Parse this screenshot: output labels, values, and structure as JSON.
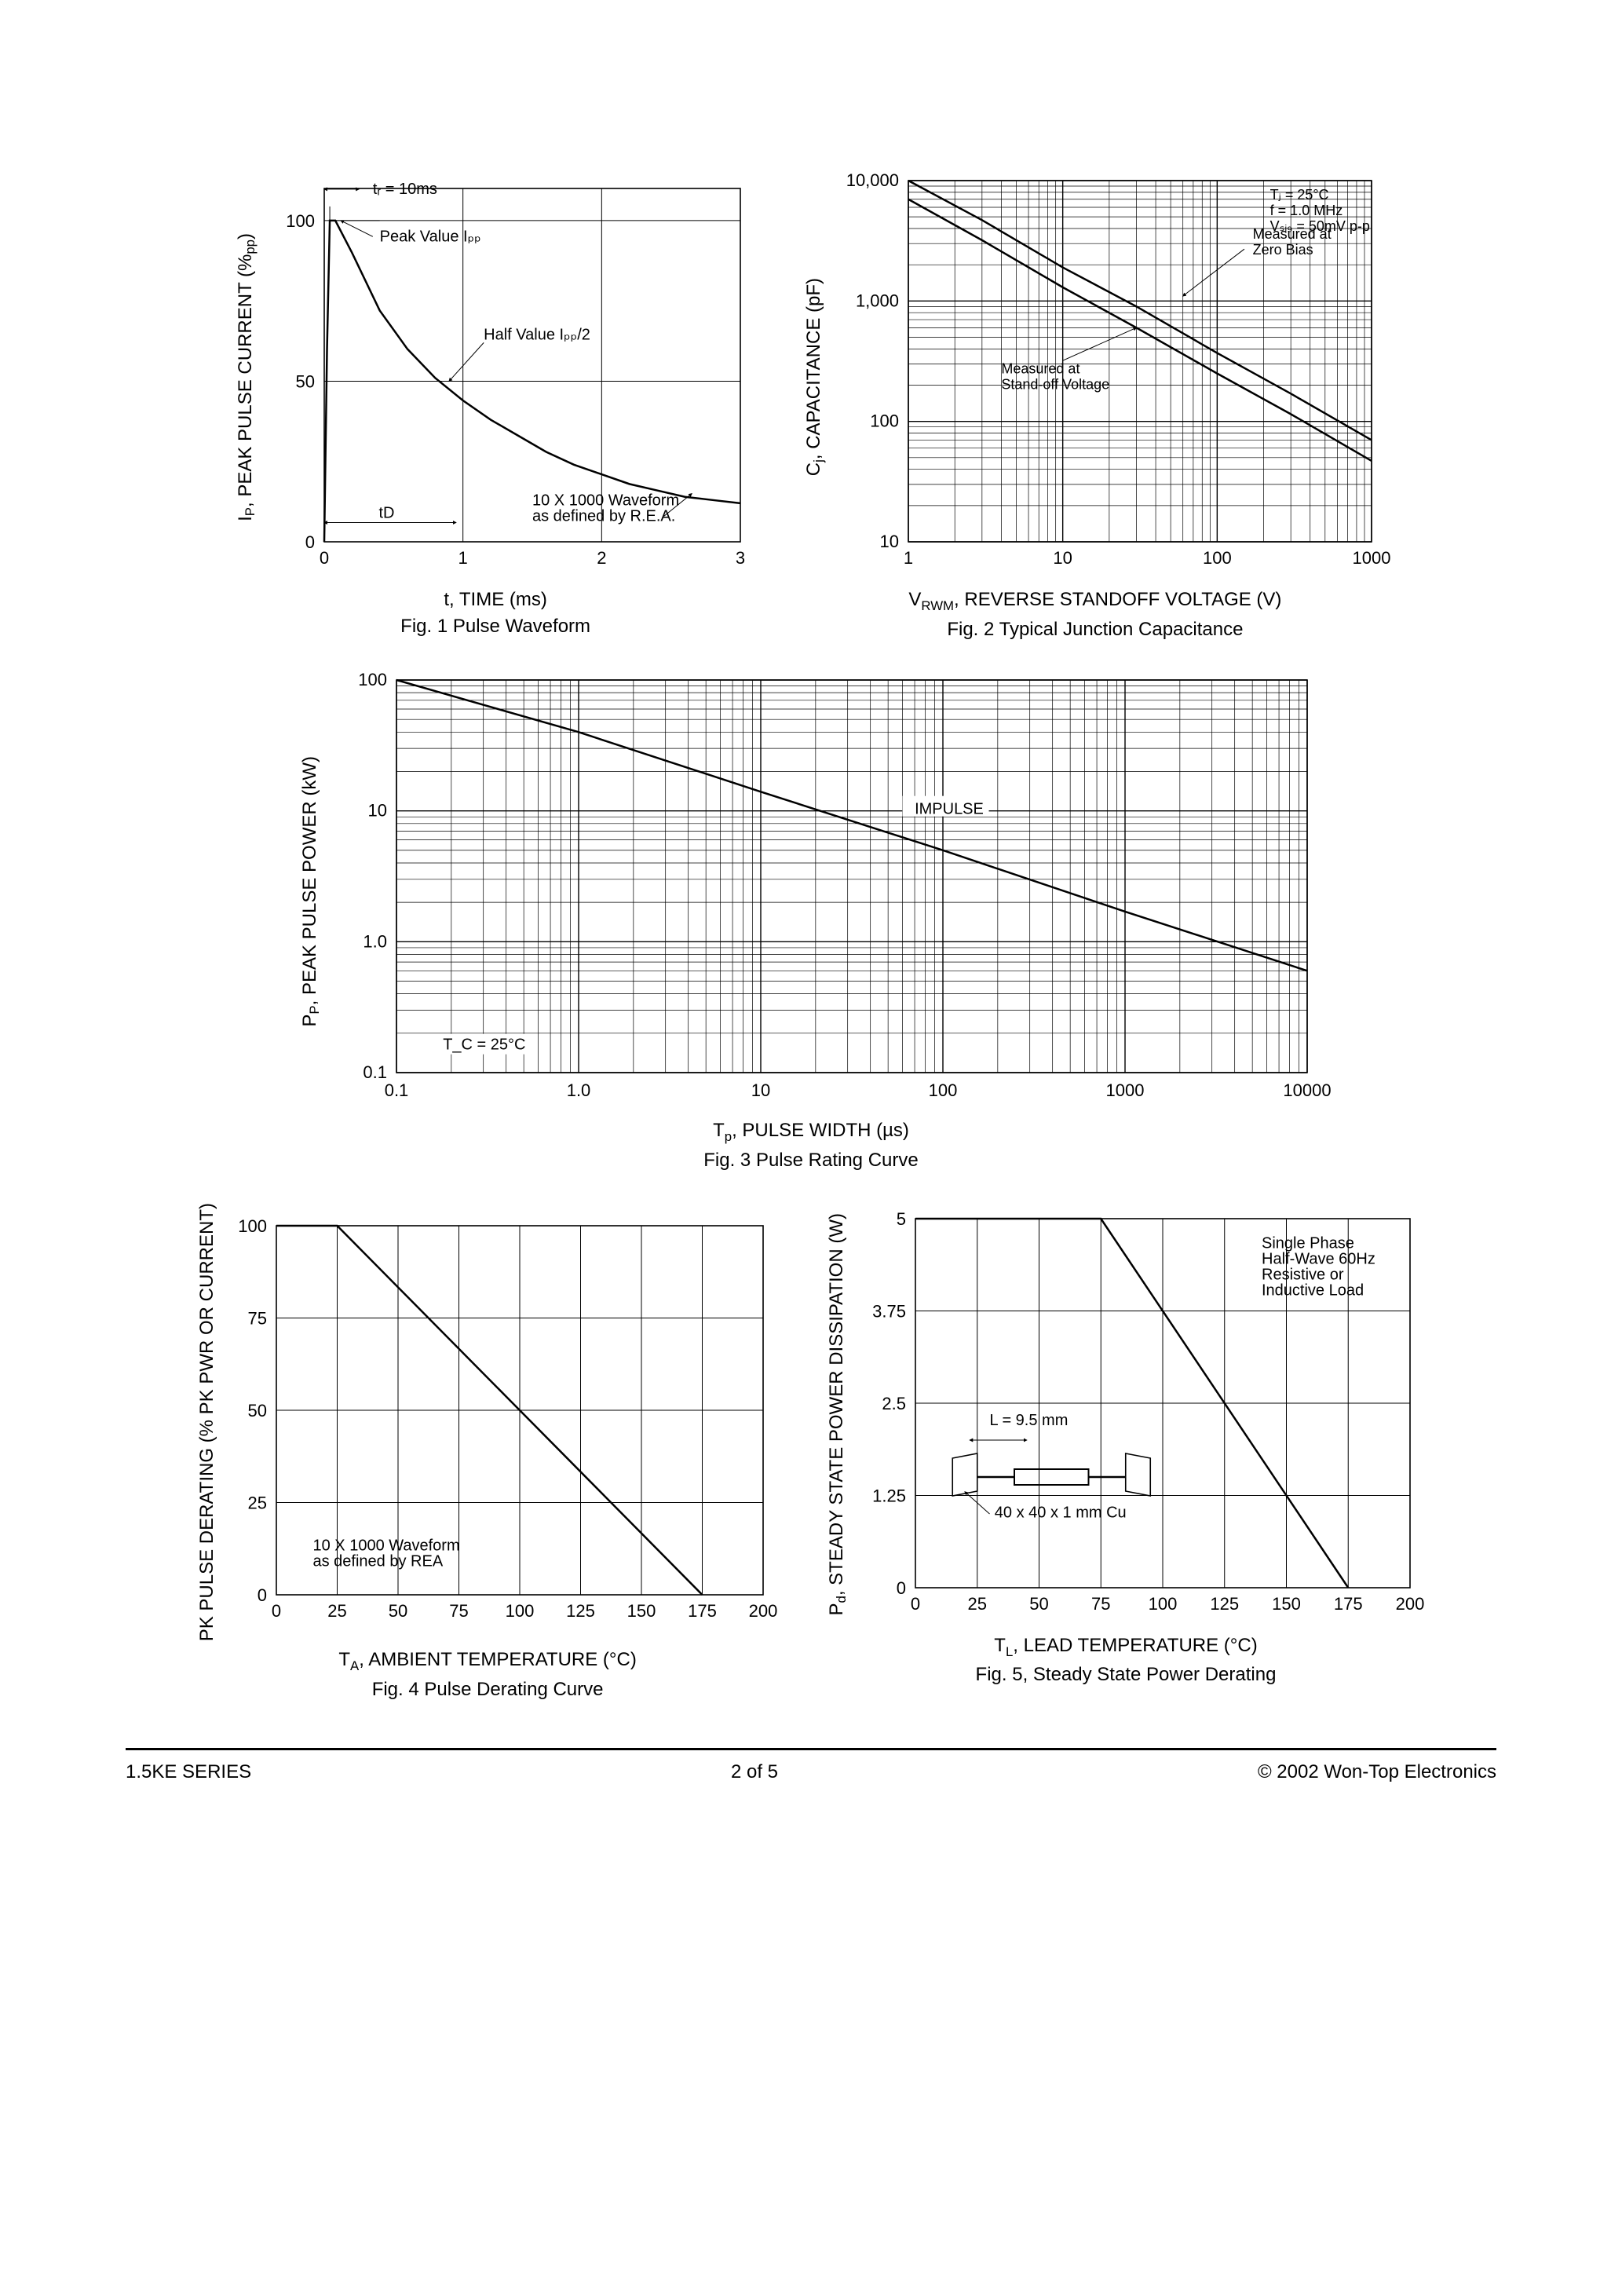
{
  "colors": {
    "line": "#000000",
    "grid": "#000000",
    "bg": "#ffffff",
    "text": "#000000"
  },
  "fig1": {
    "type": "line",
    "title": "Fig. 1  Pulse Waveform",
    "xlabel": "t, TIME (ms)",
    "ylabel": "Iₚ, PEAK PULSE CURRENT (%pp)",
    "xlim": [
      0,
      3
    ],
    "ylim": [
      0,
      110
    ],
    "xticks": [
      0,
      1,
      2,
      3
    ],
    "yticks": [
      0,
      50,
      100
    ],
    "grid": true,
    "line_width": 2.5,
    "curve": [
      [
        0,
        0
      ],
      [
        0.01,
        30
      ],
      [
        0.02,
        60
      ],
      [
        0.04,
        100
      ],
      [
        0.08,
        100
      ],
      [
        0.2,
        90
      ],
      [
        0.4,
        72
      ],
      [
        0.6,
        60
      ],
      [
        0.8,
        51
      ],
      [
        1.0,
        44
      ],
      [
        1.2,
        38
      ],
      [
        1.4,
        33
      ],
      [
        1.6,
        28
      ],
      [
        1.8,
        24
      ],
      [
        2.0,
        21
      ],
      [
        2.2,
        18
      ],
      [
        2.4,
        16
      ],
      [
        2.6,
        14
      ],
      [
        2.8,
        13
      ],
      [
        3.0,
        12
      ]
    ],
    "annotations": {
      "tr": "tᵣ = 10ms",
      "peak": "Peak Value Iₚₚ",
      "half": "Half Value Iₚₚ/2",
      "td": "tD",
      "rea": "10 X 1000 Waveform\nas defined by R.E.A."
    }
  },
  "fig2": {
    "type": "loglog",
    "title": "Fig. 2 Typical Junction Capacitance",
    "xlabel": "V_RWM, REVERSE STANDOFF VOLTAGE (V)",
    "ylabel": "Cⱼ, CAPACITANCE (pF)",
    "xlim": [
      1,
      1000
    ],
    "ylim": [
      10,
      10000
    ],
    "xticks": [
      1,
      10,
      100,
      1000
    ],
    "yticks": [
      10,
      100,
      1000,
      10000
    ],
    "line_width": 2.5,
    "curve_upper": [
      [
        1,
        10000
      ],
      [
        3,
        4700
      ],
      [
        10,
        1900
      ],
      [
        30,
        900
      ],
      [
        100,
        370
      ],
      [
        300,
        170
      ],
      [
        1000,
        70
      ]
    ],
    "curve_lower": [
      [
        1,
        7000
      ],
      [
        3,
        3200
      ],
      [
        10,
        1300
      ],
      [
        30,
        600
      ],
      [
        100,
        250
      ],
      [
        300,
        115
      ],
      [
        1000,
        47
      ]
    ],
    "annotations": {
      "conds": "Tⱼ = 25°C\nf = 1.0 MHz\nVₛᵢ₉ = 50mV p-p",
      "zero": "Measured at\nZero Bias",
      "standoff": "Measured at\nStand-off Voltage"
    }
  },
  "fig3": {
    "type": "loglog",
    "title": "Fig. 3 Pulse Rating Curve",
    "xlabel": "Tₚ, PULSE WIDTH (µs)",
    "ylabel": "Pₚ, PEAK PULSE POWER (kW)",
    "xlim": [
      0.1,
      10000
    ],
    "ylim": [
      0.1,
      100
    ],
    "xticks": [
      0.1,
      1.0,
      10,
      100,
      1000,
      10000
    ],
    "yticks": [
      0.1,
      1.0,
      10,
      100
    ],
    "xtick_labels": [
      "0.1",
      "1.0",
      "10",
      "100",
      "1000",
      "10000"
    ],
    "ytick_labels": [
      "0.1",
      "1.0",
      "10",
      "100"
    ],
    "line_width": 2.5,
    "curve": [
      [
        0.1,
        100
      ],
      [
        1,
        40
      ],
      [
        10,
        14
      ],
      [
        100,
        5
      ],
      [
        1000,
        1.7
      ],
      [
        10000,
        0.6
      ]
    ],
    "annotations": {
      "impulse": "IMPULSE",
      "tc": "T_C = 25°C"
    }
  },
  "fig4": {
    "type": "line",
    "title": "Fig. 4  Pulse Derating Curve",
    "xlabel": "Tₐ, AMBIENT TEMPERATURE (°C)",
    "ylabel": "PK PULSE DERATING (% PK PWR OR CURRENT)",
    "xlim": [
      0,
      200
    ],
    "ylim": [
      0,
      100
    ],
    "xticks": [
      0,
      25,
      50,
      75,
      100,
      125,
      150,
      175,
      200
    ],
    "yticks": [
      0,
      25,
      50,
      75,
      100
    ],
    "grid": true,
    "line_width": 2.5,
    "curve": [
      [
        0,
        100
      ],
      [
        25,
        100
      ],
      [
        175,
        0
      ]
    ],
    "annotations": {
      "rea": "10 X 1000 Waveform\nas defined by REA"
    }
  },
  "fig5": {
    "type": "line",
    "title": "Fig. 5, Steady State Power Derating",
    "xlabel": "T_L, LEAD TEMPERATURE (°C)",
    "ylabel": "P_d, STEADY STATE POWER DISSIPATION (W)",
    "xlim": [
      0,
      200
    ],
    "ylim": [
      0,
      5.0
    ],
    "xticks": [
      0,
      25,
      50,
      75,
      100,
      125,
      150,
      175,
      200
    ],
    "yticks": [
      0,
      1.25,
      2.5,
      3.75,
      5.0
    ],
    "grid": true,
    "line_width": 2.5,
    "curve": [
      [
        0,
        5.0
      ],
      [
        75,
        5.0
      ],
      [
        175,
        0
      ]
    ],
    "annotations": {
      "phase": "Single Phase\nHalf-Wave 60Hz\nResistive or\nInductive Load",
      "L": "L = 9.5 mm",
      "cu": "40 x 40 x 1 mm Cu"
    }
  },
  "footer": {
    "series": "1.5KE SERIES",
    "page": "2  of  5",
    "copyright": "© 2002 Won-Top Electronics"
  }
}
